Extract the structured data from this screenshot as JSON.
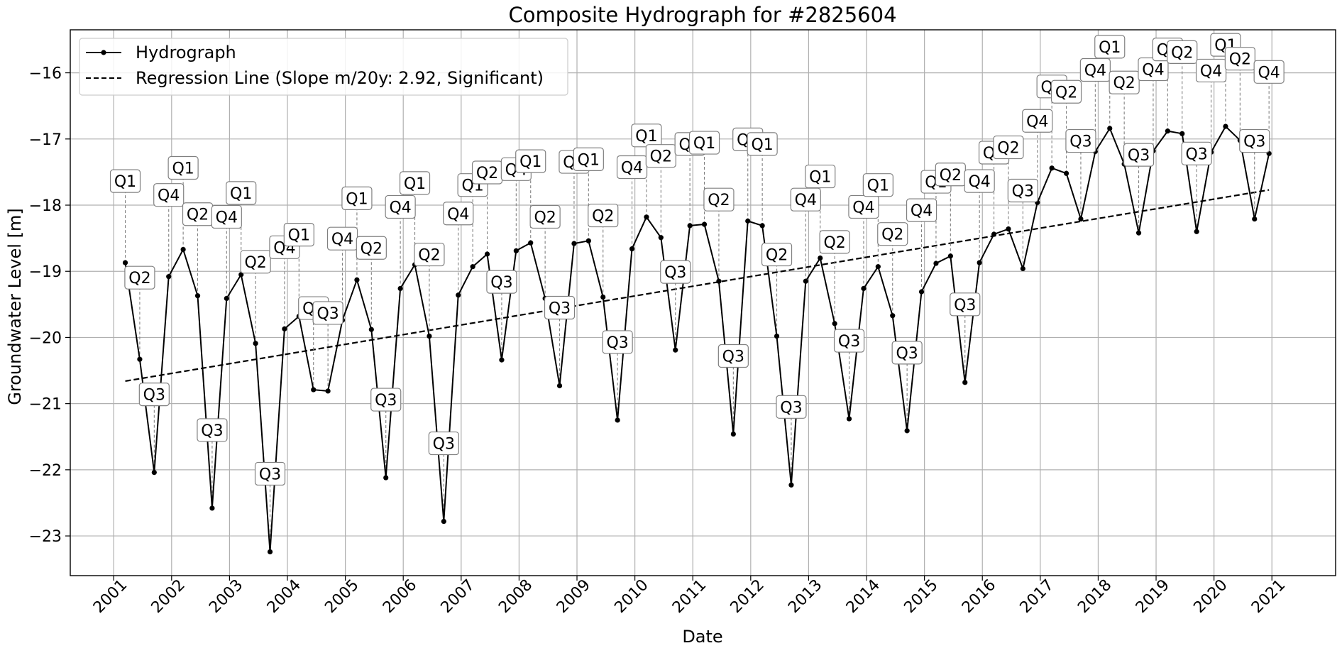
{
  "chart_data": {
    "type": "line",
    "title": "Composite Hydrograph for  #2825604",
    "xlabel": "Date",
    "ylabel": "Groundwater Level [m]",
    "xlim": [
      2000.25,
      2022.1
    ],
    "ylim": [
      -23.6,
      -15.35
    ],
    "x_ticks": [
      2001,
      2002,
      2003,
      2004,
      2005,
      2006,
      2007,
      2008,
      2009,
      2010,
      2011,
      2012,
      2013,
      2014,
      2015,
      2016,
      2017,
      2018,
      2019,
      2020,
      2021
    ],
    "x_tick_labels": [
      "2001",
      "2002",
      "2003",
      "2004",
      "2005",
      "2006",
      "2007",
      "2008",
      "2009",
      "2010",
      "2011",
      "2012",
      "2013",
      "2014",
      "2015",
      "2016",
      "2017",
      "2018",
      "2019",
      "2020",
      "2021"
    ],
    "y_ticks": [
      -23,
      -22,
      -21,
      -20,
      -19,
      -18,
      -17,
      -16
    ],
    "y_tick_labels": [
      "−23",
      "−22",
      "−21",
      "−20",
      "−19",
      "−18",
      "−17",
      "−16"
    ],
    "grid": true,
    "legend_position": "top-left",
    "colors": {
      "hydrograph": "#000000",
      "regression": "#000000",
      "grid": "#b0b0b0",
      "annotation_line": "#808080",
      "label_border": "#808080"
    },
    "series": [
      {
        "name": "Hydrograph",
        "style": "solid-line-with-markers",
        "points": [
          {
            "x": "2001-Q1",
            "y": -18.87,
            "label": "Q1"
          },
          {
            "x": "2001-Q2",
            "y": -20.33,
            "label": "Q2"
          },
          {
            "x": "2001-Q3",
            "y": -22.04,
            "label": "Q3"
          },
          {
            "x": "2001-Q4",
            "y": -19.08,
            "label": "Q4"
          },
          {
            "x": "2002-Q1",
            "y": -18.67,
            "label": "Q1"
          },
          {
            "x": "2002-Q2",
            "y": -19.37,
            "label": "Q2"
          },
          {
            "x": "2002-Q3",
            "y": -22.58,
            "label": "Q3"
          },
          {
            "x": "2002-Q4",
            "y": -19.41,
            "label": "Q4"
          },
          {
            "x": "2003-Q1",
            "y": -19.05,
            "label": "Q1"
          },
          {
            "x": "2003-Q2",
            "y": -20.09,
            "label": "Q2"
          },
          {
            "x": "2003-Q3",
            "y": -23.24,
            "label": "Q3"
          },
          {
            "x": "2003-Q4",
            "y": -19.87,
            "label": "Q4"
          },
          {
            "x": "2004-Q1",
            "y": -19.68,
            "label": "Q1"
          },
          {
            "x": "2004-Q2",
            "y": -20.79,
            "label": "Q2"
          },
          {
            "x": "2004-Q3",
            "y": -20.81,
            "label": "Q3"
          },
          {
            "x": "2004-Q4",
            "y": -19.74,
            "label": "Q4"
          },
          {
            "x": "2005-Q1",
            "y": -19.13,
            "label": "Q1"
          },
          {
            "x": "2005-Q2",
            "y": -19.88,
            "label": "Q2"
          },
          {
            "x": "2005-Q3",
            "y": -22.12,
            "label": "Q3"
          },
          {
            "x": "2005-Q4",
            "y": -19.26,
            "label": "Q4"
          },
          {
            "x": "2006-Q1",
            "y": -18.9,
            "label": "Q1"
          },
          {
            "x": "2006-Q2",
            "y": -19.98,
            "label": "Q2"
          },
          {
            "x": "2006-Q3",
            "y": -22.78,
            "label": "Q3"
          },
          {
            "x": "2006-Q4",
            "y": -19.36,
            "label": "Q4"
          },
          {
            "x": "2007-Q1",
            "y": -18.93,
            "label": "Q1"
          },
          {
            "x": "2007-Q2",
            "y": -18.74,
            "label": "Q2"
          },
          {
            "x": "2007-Q3",
            "y": -20.34,
            "label": "Q3"
          },
          {
            "x": "2007-Q4",
            "y": -18.69,
            "label": "Q4"
          },
          {
            "x": "2008-Q1",
            "y": -18.57,
            "label": "Q1"
          },
          {
            "x": "2008-Q2",
            "y": -19.41,
            "label": "Q2"
          },
          {
            "x": "2008-Q3",
            "y": -20.73,
            "label": "Q3"
          },
          {
            "x": "2008-Q4",
            "y": -18.58,
            "label": "Q4"
          },
          {
            "x": "2009-Q1",
            "y": -18.54,
            "label": "Q1"
          },
          {
            "x": "2009-Q2",
            "y": -19.39,
            "label": "Q2"
          },
          {
            "x": "2009-Q3",
            "y": -21.25,
            "label": "Q3"
          },
          {
            "x": "2009-Q4",
            "y": -18.66,
            "label": "Q4"
          },
          {
            "x": "2010-Q1",
            "y": -18.18,
            "label": "Q1"
          },
          {
            "x": "2010-Q2",
            "y": -18.49,
            "label": "Q2"
          },
          {
            "x": "2010-Q3",
            "y": -20.19,
            "label": "Q3"
          },
          {
            "x": "2010-Q4",
            "y": -18.31,
            "label": "Q4"
          },
          {
            "x": "2011-Q1",
            "y": -18.29,
            "label": "Q1"
          },
          {
            "x": "2011-Q2",
            "y": -19.15,
            "label": "Q2"
          },
          {
            "x": "2011-Q3",
            "y": -21.46,
            "label": "Q3"
          },
          {
            "x": "2011-Q4",
            "y": -18.24,
            "label": "Q4"
          },
          {
            "x": "2012-Q1",
            "y": -18.31,
            "label": "Q1"
          },
          {
            "x": "2012-Q2",
            "y": -19.98,
            "label": "Q2"
          },
          {
            "x": "2012-Q3",
            "y": -22.23,
            "label": "Q3"
          },
          {
            "x": "2012-Q4",
            "y": -19.15,
            "label": "Q4"
          },
          {
            "x": "2013-Q1",
            "y": -18.8,
            "label": "Q1"
          },
          {
            "x": "2013-Q2",
            "y": -19.79,
            "label": "Q2"
          },
          {
            "x": "2013-Q3",
            "y": -21.23,
            "label": "Q3"
          },
          {
            "x": "2013-Q4",
            "y": -19.26,
            "label": "Q4"
          },
          {
            "x": "2014-Q1",
            "y": -18.93,
            "label": "Q1"
          },
          {
            "x": "2014-Q2",
            "y": -19.67,
            "label": "Q2"
          },
          {
            "x": "2014-Q3",
            "y": -21.41,
            "label": "Q3"
          },
          {
            "x": "2014-Q4",
            "y": -19.31,
            "label": "Q4"
          },
          {
            "x": "2015-Q1",
            "y": -18.88,
            "label": "Q1"
          },
          {
            "x": "2015-Q2",
            "y": -18.77,
            "label": "Q2"
          },
          {
            "x": "2015-Q3",
            "y": -20.68,
            "label": "Q3"
          },
          {
            "x": "2015-Q4",
            "y": -18.87,
            "label": "Q4"
          },
          {
            "x": "2016-Q1",
            "y": -18.44,
            "label": "Q1"
          },
          {
            "x": "2016-Q2",
            "y": -18.36,
            "label": "Q2"
          },
          {
            "x": "2016-Q3",
            "y": -18.96,
            "label": "Q3"
          },
          {
            "x": "2016-Q4",
            "y": -17.96,
            "label": "Q4"
          },
          {
            "x": "2017-Q1",
            "y": -17.44,
            "label": "Q1"
          },
          {
            "x": "2017-Q2",
            "y": -17.52,
            "label": "Q2"
          },
          {
            "x": "2017-Q3",
            "y": -18.21,
            "label": "Q3"
          },
          {
            "x": "2017-Q4",
            "y": -17.19,
            "label": "Q4"
          },
          {
            "x": "2018-Q1",
            "y": -16.84,
            "label": "Q1"
          },
          {
            "x": "2018-Q2",
            "y": -17.38,
            "label": "Q2"
          },
          {
            "x": "2018-Q3",
            "y": -18.42,
            "label": "Q3"
          },
          {
            "x": "2018-Q4",
            "y": -17.18,
            "label": "Q4"
          },
          {
            "x": "2019-Q1",
            "y": -16.88,
            "label": "Q1"
          },
          {
            "x": "2019-Q2",
            "y": -16.92,
            "label": "Q2"
          },
          {
            "x": "2019-Q3",
            "y": -18.4,
            "label": "Q3"
          },
          {
            "x": "2019-Q4",
            "y": -17.2,
            "label": "Q4"
          },
          {
            "x": "2020-Q1",
            "y": -16.81,
            "label": "Q1"
          },
          {
            "x": "2020-Q2",
            "y": -17.02,
            "label": "Q2"
          },
          {
            "x": "2020-Q3",
            "y": -18.21,
            "label": "Q3"
          },
          {
            "x": "2020-Q4",
            "y": -17.22,
            "label": "Q4"
          }
        ]
      },
      {
        "name": "Regression Line (Slope m/20y: 2.92, Significant)",
        "style": "dashed",
        "points": [
          {
            "x": "2001-Q1",
            "y": -20.66
          },
          {
            "x": "2020-Q4",
            "y": -17.77
          }
        ]
      }
    ]
  }
}
